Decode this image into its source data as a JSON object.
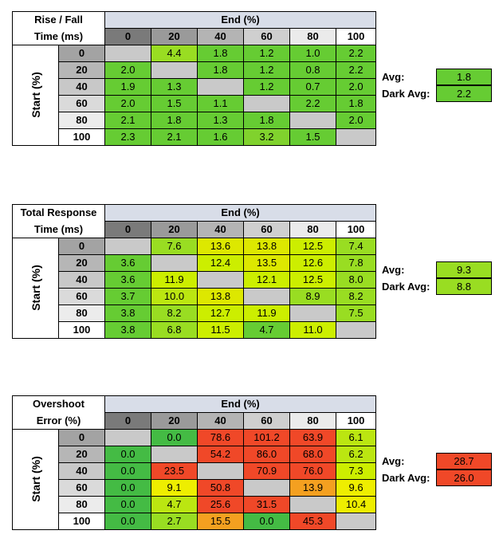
{
  "chart_data": [
    {
      "type": "table",
      "title": [
        "Rise / Fall",
        "Time (ms)"
      ],
      "column_header": "End (%)",
      "row_header": "Start (%)",
      "columns": [
        "0",
        "20",
        "40",
        "60",
        "80",
        "100"
      ],
      "rows": [
        "0",
        "20",
        "40",
        "60",
        "80",
        "100"
      ],
      "values": [
        [
          "",
          "4.4",
          "1.8",
          "1.2",
          "1.0",
          "2.2"
        ],
        [
          "2.0",
          "",
          "1.8",
          "1.2",
          "0.8",
          "2.2"
        ],
        [
          "1.9",
          "1.3",
          "",
          "1.2",
          "0.7",
          "2.0"
        ],
        [
          "2.0",
          "1.5",
          "1.1",
          "",
          "2.2",
          "1.8"
        ],
        [
          "2.1",
          "1.8",
          "1.3",
          "1.8",
          "",
          "2.0"
        ],
        [
          "2.3",
          "2.1",
          "1.6",
          "3.2",
          "1.5",
          ""
        ]
      ],
      "summary": [
        {
          "label": "Avg:",
          "value": "1.8",
          "color": "#66cc33"
        },
        {
          "label": "Dark Avg:",
          "value": "2.2",
          "color": "#66cc33"
        }
      ]
    },
    {
      "type": "table",
      "title": [
        "Total Response",
        "Time (ms)"
      ],
      "column_header": "End (%)",
      "row_header": "Start (%)",
      "columns": [
        "0",
        "20",
        "40",
        "60",
        "80",
        "100"
      ],
      "rows": [
        "0",
        "20",
        "40",
        "60",
        "80",
        "100"
      ],
      "values": [
        [
          "",
          "7.6",
          "13.6",
          "13.8",
          "12.5",
          "7.4"
        ],
        [
          "3.6",
          "",
          "12.4",
          "13.5",
          "12.6",
          "7.8"
        ],
        [
          "3.6",
          "11.9",
          "",
          "12.1",
          "12.5",
          "8.0"
        ],
        [
          "3.7",
          "10.0",
          "13.8",
          "",
          "8.9",
          "8.2"
        ],
        [
          "3.8",
          "8.2",
          "12.7",
          "11.9",
          "",
          "7.5"
        ],
        [
          "3.8",
          "6.8",
          "11.5",
          "4.7",
          "11.0",
          ""
        ]
      ],
      "summary": [
        {
          "label": "Avg:",
          "value": "9.3",
          "color": "#99dd22"
        },
        {
          "label": "Dark Avg:",
          "value": "8.8",
          "color": "#99dd22"
        }
      ]
    },
    {
      "type": "table",
      "title": [
        "Overshoot",
        "Error (%)"
      ],
      "column_header": "End (%)",
      "row_header": "Start (%)",
      "columns": [
        "0",
        "20",
        "40",
        "60",
        "80",
        "100"
      ],
      "rows": [
        "0",
        "20",
        "40",
        "60",
        "80",
        "100"
      ],
      "values": [
        [
          "",
          "0.0",
          "78.6",
          "101.2",
          "63.9",
          "6.1"
        ],
        [
          "0.0",
          "",
          "54.2",
          "86.0",
          "68.0",
          "6.2"
        ],
        [
          "0.0",
          "23.5",
          "",
          "70.9",
          "76.0",
          "7.3"
        ],
        [
          "0.0",
          "9.1",
          "50.8",
          "",
          "13.9",
          "9.6"
        ],
        [
          "0.0",
          "4.7",
          "25.6",
          "31.5",
          "",
          "10.4"
        ],
        [
          "0.0",
          "2.7",
          "15.5",
          "0.0",
          "45.3",
          ""
        ]
      ],
      "summary": [
        {
          "label": "Avg:",
          "value": "28.7",
          "color": "#f04828"
        },
        {
          "label": "Dark Avg:",
          "value": "26.0",
          "color": "#f04828"
        }
      ]
    }
  ],
  "colors": {
    "col_headers": [
      "#7a7a7a",
      "#9a9a9a",
      "#b4b4b4",
      "#cfcfcf",
      "#ebebeb",
      "#ffffff"
    ],
    "row_headers": [
      "#a3a3a3",
      "#b6b6b6",
      "#c8c8c8",
      "#dadada",
      "#ececec",
      "#ffffff"
    ],
    "t1": [
      [
        "#c9c9c9",
        "#99dd22",
        "#66cc33",
        "#66cc33",
        "#66cc33",
        "#66cc33"
      ],
      [
        "#66cc33",
        "#c9c9c9",
        "#66cc33",
        "#66cc33",
        "#66cc33",
        "#66cc33"
      ],
      [
        "#66cc33",
        "#66cc33",
        "#c9c9c9",
        "#66cc33",
        "#66cc33",
        "#66cc33"
      ],
      [
        "#66cc33",
        "#66cc33",
        "#66cc33",
        "#c9c9c9",
        "#66cc33",
        "#66cc33"
      ],
      [
        "#66cc33",
        "#66cc33",
        "#66cc33",
        "#66cc33",
        "#c9c9c9",
        "#66cc33"
      ],
      [
        "#66cc33",
        "#66cc33",
        "#66cc33",
        "#80d22d",
        "#66cc33",
        "#c9c9c9"
      ]
    ],
    "t2": [
      [
        "#c9c9c9",
        "#99dd22",
        "#dde800",
        "#dde800",
        "#ccee00",
        "#99dd22"
      ],
      [
        "#66cc33",
        "#c9c9c9",
        "#ccee00",
        "#dde800",
        "#ccee00",
        "#99dd22"
      ],
      [
        "#66cc33",
        "#ccee00",
        "#c9c9c9",
        "#ccee00",
        "#ccee00",
        "#99dd22"
      ],
      [
        "#66cc33",
        "#bbe611",
        "#dde800",
        "#c9c9c9",
        "#99dd22",
        "#99dd22"
      ],
      [
        "#66cc33",
        "#99dd22",
        "#ccee00",
        "#ccee00",
        "#c9c9c9",
        "#99dd22"
      ],
      [
        "#66cc33",
        "#99dd22",
        "#ccee00",
        "#66cc33",
        "#ccee00",
        "#c9c9c9"
      ]
    ],
    "t3": [
      [
        "#c9c9c9",
        "#44bb44",
        "#f04828",
        "#f04828",
        "#f04828",
        "#bbe611"
      ],
      [
        "#44bb44",
        "#c9c9c9",
        "#f04828",
        "#f04828",
        "#f04828",
        "#bbe611"
      ],
      [
        "#44bb44",
        "#f04828",
        "#c9c9c9",
        "#f04828",
        "#f04828",
        "#ccee00"
      ],
      [
        "#44bb44",
        "#eeee00",
        "#f04828",
        "#c9c9c9",
        "#f4a020",
        "#eeee00"
      ],
      [
        "#44bb44",
        "#bbe611",
        "#f04828",
        "#f04828",
        "#c9c9c9",
        "#eeee00"
      ],
      [
        "#44bb44",
        "#99dd22",
        "#f4a020",
        "#44bb44",
        "#f04828",
        "#c9c9c9"
      ]
    ]
  }
}
